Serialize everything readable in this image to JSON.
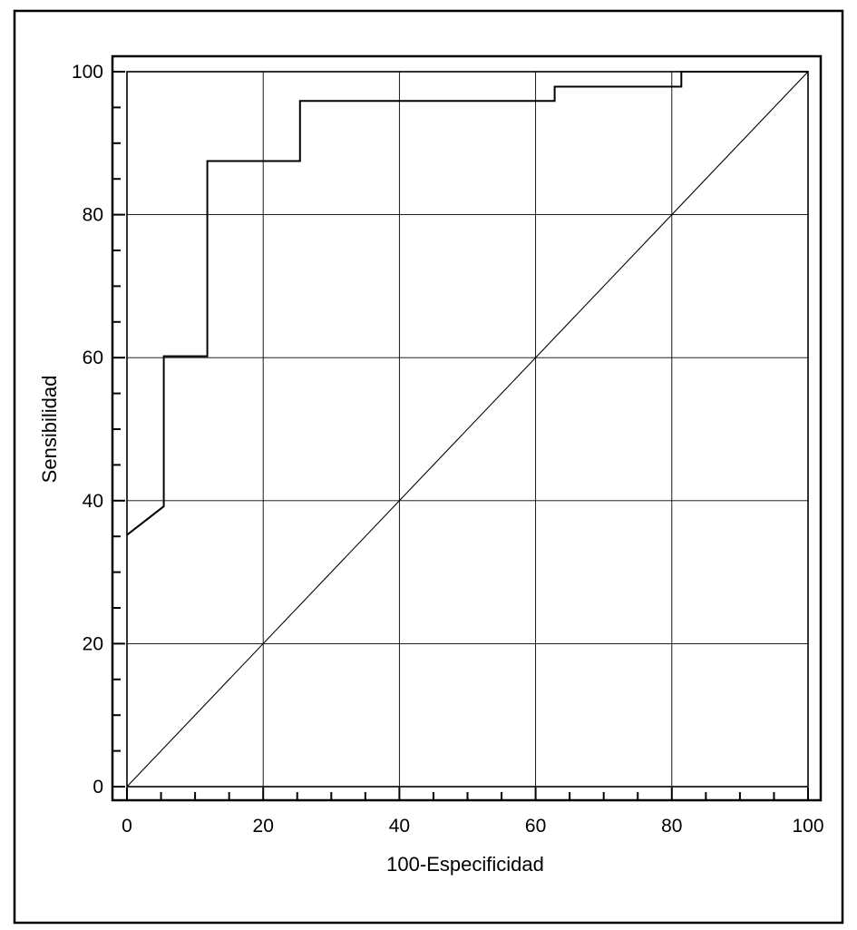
{
  "chart_data": {
    "type": "line",
    "title": "",
    "xlabel": "100-Especificidad",
    "ylabel": "Sensibilidad",
    "xlim": [
      0,
      100
    ],
    "ylim": [
      0,
      100
    ],
    "xticks": [
      0,
      20,
      40,
      60,
      80,
      100
    ],
    "yticks": [
      0,
      20,
      40,
      60,
      80,
      100
    ],
    "xtick_labels": [
      "0",
      "20",
      "40",
      "60",
      "80",
      "100"
    ],
    "ytick_labels": [
      "0",
      "20",
      "40",
      "60",
      "80",
      "100"
    ],
    "grid": true,
    "series": [
      {
        "style": "step",
        "x": [
          0,
          5.4,
          5.4,
          11.8,
          11.8,
          25.4,
          25.4,
          62.8,
          62.8,
          81.4,
          81.4,
          100
        ],
        "y": [
          35.2,
          39.2,
          60.2,
          60.2,
          87.5,
          87.5,
          95.9,
          95.9,
          97.9,
          97.9,
          100,
          100
        ]
      },
      {
        "style": "reference-diagonal",
        "x": [
          0,
          100
        ],
        "y": [
          0,
          100
        ]
      }
    ],
    "colors": {
      "curve": "#000000",
      "grid": "#000000",
      "background": "#ffffff"
    }
  }
}
